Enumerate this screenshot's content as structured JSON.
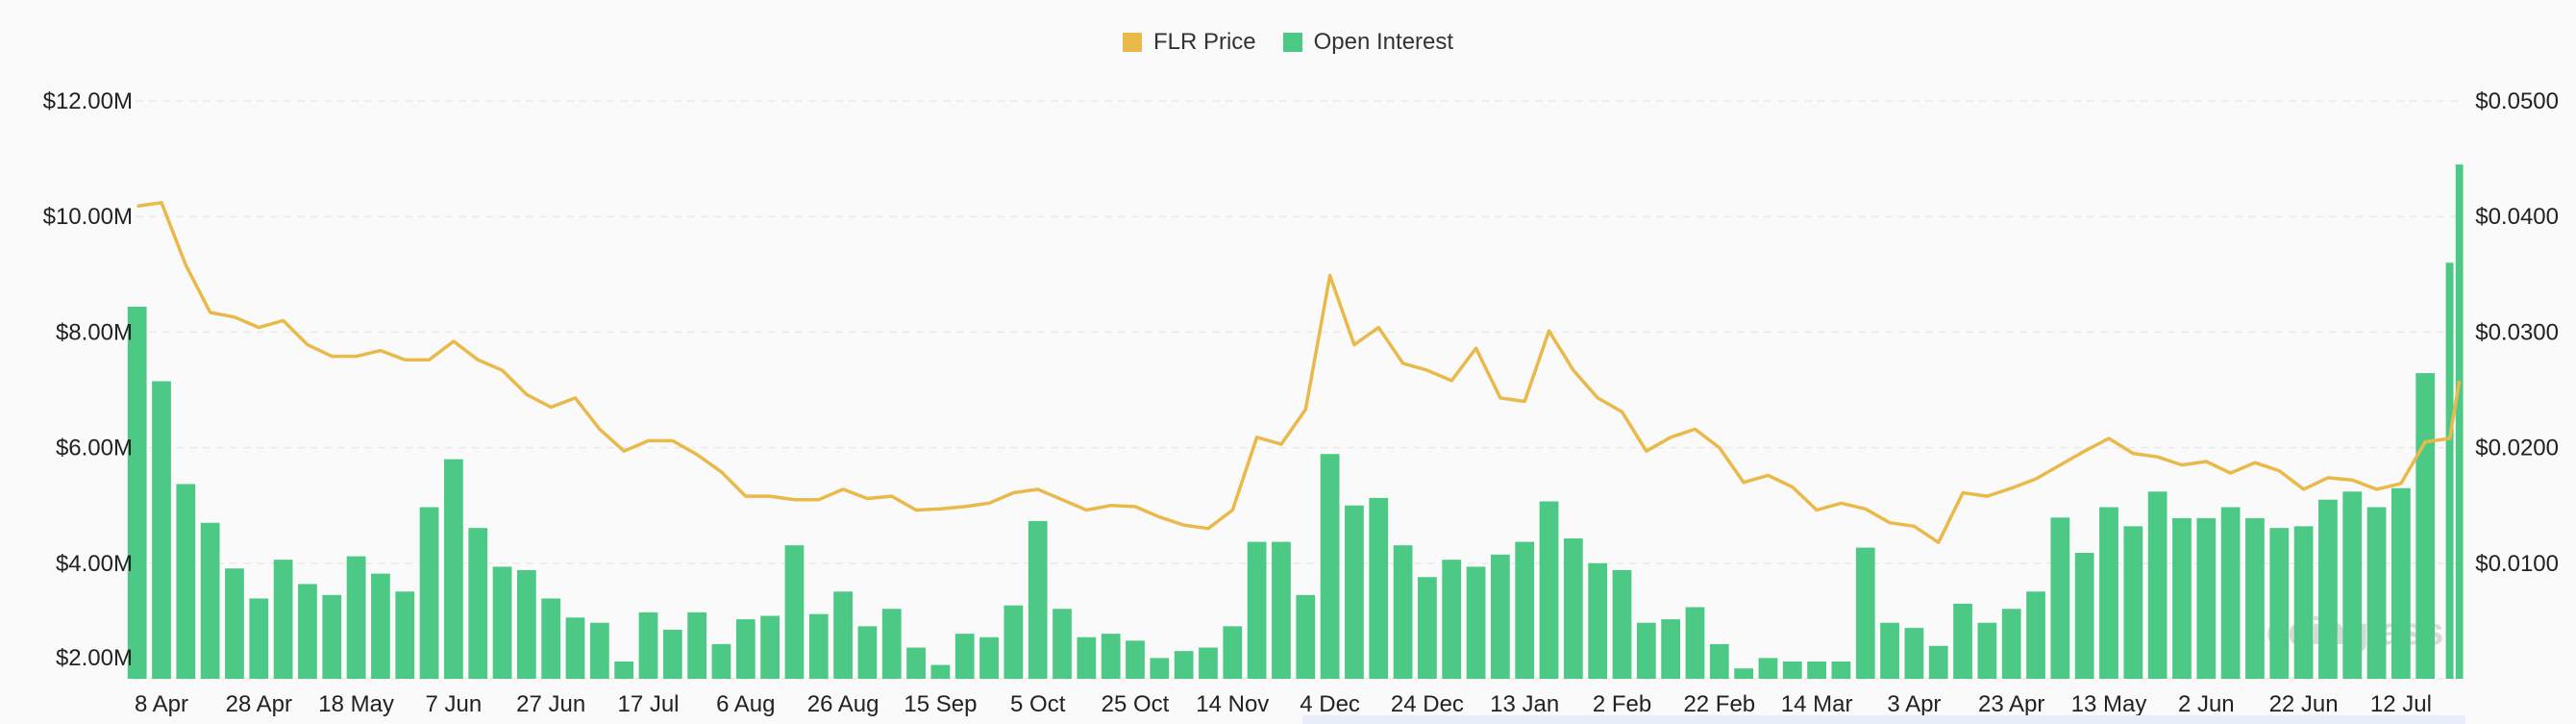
{
  "legend": [
    {
      "label": "FLR Price",
      "color": "#E9B949"
    },
    {
      "label": "Open Interest",
      "color": "#4CC984"
    }
  ],
  "watermark": "coinglass",
  "chart_data": {
    "type": "bar+line",
    "grid": true,
    "legend_position": "top-center",
    "y_left": {
      "ticks": [
        "$2.00M",
        "$4.00M",
        "$6.00M",
        "$8.00M",
        "$10.00M",
        "$12.00M"
      ],
      "tick_values": [
        2,
        4,
        6,
        8,
        10,
        12
      ],
      "range": [
        2,
        12
      ],
      "unit": "USD millions"
    },
    "y_right": {
      "ticks": [
        "$0.0100",
        "$0.0200",
        "$0.0300",
        "$0.0400",
        "$0.0500"
      ],
      "tick_values": [
        0.01,
        0.02,
        0.03,
        0.04,
        0.05
      ],
      "range": [
        0,
        0.05
      ],
      "unit": "USD"
    },
    "x_ticks": [
      {
        "label": "8 Apr",
        "date": "2024-04-08"
      },
      {
        "label": "28 Apr",
        "date": "2024-04-28"
      },
      {
        "label": "18 May",
        "date": "2024-05-18"
      },
      {
        "label": "7 Jun",
        "date": "2024-06-07"
      },
      {
        "label": "27 Jun",
        "date": "2024-06-27"
      },
      {
        "label": "17 Jul",
        "date": "2024-07-17"
      },
      {
        "label": "6 Aug",
        "date": "2024-08-06"
      },
      {
        "label": "26 Aug",
        "date": "2024-08-26"
      },
      {
        "label": "15 Sep",
        "date": "2024-09-15"
      },
      {
        "label": "5 Oct",
        "date": "2024-10-05"
      },
      {
        "label": "25 Oct",
        "date": "2024-10-25"
      },
      {
        "label": "14 Nov",
        "date": "2024-11-14"
      },
      {
        "label": "4 Dec",
        "date": "2024-12-04"
      },
      {
        "label": "24 Dec",
        "date": "2024-12-24"
      },
      {
        "label": "13 Jan",
        "date": "2025-01-13"
      },
      {
        "label": "2 Feb",
        "date": "2025-02-02"
      },
      {
        "label": "22 Feb",
        "date": "2025-02-22"
      },
      {
        "label": "14 Mar",
        "date": "2025-03-14"
      },
      {
        "label": "3 Apr",
        "date": "2025-04-03"
      },
      {
        "label": "23 Apr",
        "date": "2025-04-23"
      },
      {
        "label": "13 May",
        "date": "2025-05-13"
      },
      {
        "label": "2 Jun",
        "date": "2025-06-02"
      },
      {
        "label": "22 Jun",
        "date": "2025-06-22"
      },
      {
        "label": "12 Jul",
        "date": "2025-07-12"
      }
    ],
    "x": [
      "2024-04-03",
      "2024-04-08",
      "2024-04-13",
      "2024-04-18",
      "2024-04-23",
      "2024-04-28",
      "2024-05-03",
      "2024-05-08",
      "2024-05-13",
      "2024-05-18",
      "2024-05-23",
      "2024-05-28",
      "2024-06-02",
      "2024-06-07",
      "2024-06-12",
      "2024-06-17",
      "2024-06-22",
      "2024-06-27",
      "2024-07-02",
      "2024-07-07",
      "2024-07-12",
      "2024-07-17",
      "2024-07-22",
      "2024-07-27",
      "2024-08-01",
      "2024-08-06",
      "2024-08-11",
      "2024-08-16",
      "2024-08-21",
      "2024-08-26",
      "2024-08-31",
      "2024-09-05",
      "2024-09-10",
      "2024-09-15",
      "2024-09-20",
      "2024-09-25",
      "2024-09-30",
      "2024-10-05",
      "2024-10-10",
      "2024-10-15",
      "2024-10-20",
      "2024-10-25",
      "2024-10-30",
      "2024-11-04",
      "2024-11-09",
      "2024-11-14",
      "2024-11-19",
      "2024-11-24",
      "2024-11-29",
      "2024-12-04",
      "2024-12-09",
      "2024-12-14",
      "2024-12-19",
      "2024-12-24",
      "2024-12-29",
      "2025-01-03",
      "2025-01-08",
      "2025-01-13",
      "2025-01-18",
      "2025-01-23",
      "2025-01-28",
      "2025-02-02",
      "2025-02-07",
      "2025-02-12",
      "2025-02-17",
      "2025-02-22",
      "2025-02-27",
      "2025-03-04",
      "2025-03-09",
      "2025-03-14",
      "2025-03-19",
      "2025-03-24",
      "2025-03-29",
      "2025-04-03",
      "2025-04-08",
      "2025-04-13",
      "2025-04-18",
      "2025-04-23",
      "2025-04-28",
      "2025-05-03",
      "2025-05-08",
      "2025-05-13",
      "2025-05-18",
      "2025-05-23",
      "2025-05-28",
      "2025-06-02",
      "2025-06-07",
      "2025-06-12",
      "2025-06-17",
      "2025-06-22",
      "2025-06-27",
      "2025-07-02",
      "2025-07-07",
      "2025-07-12",
      "2025-07-17",
      "2025-07-22",
      "2025-07-24"
    ],
    "series": [
      {
        "name": "Open Interest",
        "type": "bar",
        "axis": "left",
        "color": "#4CC984",
        "values": [
          8.44,
          7.15,
          5.37,
          4.7,
          3.91,
          3.39,
          4.06,
          3.64,
          3.45,
          4.12,
          3.82,
          3.51,
          4.97,
          5.8,
          4.61,
          3.94,
          3.88,
          3.39,
          3.06,
          2.97,
          2.3,
          3.15,
          2.85,
          3.15,
          2.6,
          3.03,
          3.09,
          4.31,
          3.12,
          3.51,
          2.91,
          3.21,
          2.54,
          2.24,
          2.78,
          2.72,
          3.27,
          4.73,
          3.21,
          2.72,
          2.78,
          2.66,
          2.36,
          2.48,
          2.54,
          2.91,
          4.37,
          4.37,
          3.45,
          5.89,
          5.0,
          5.13,
          4.31,
          3.76,
          4.06,
          3.94,
          4.15,
          4.37,
          5.07,
          4.43,
          4.0,
          3.88,
          2.97,
          3.03,
          3.24,
          2.6,
          2.18,
          2.36,
          2.3,
          2.3,
          2.3,
          4.27,
          2.97,
          2.88,
          2.57,
          3.3,
          2.97,
          3.21,
          3.51,
          4.79,
          4.18,
          4.97,
          4.64,
          5.24,
          4.78,
          4.78,
          4.97,
          4.78,
          4.61,
          4.64,
          5.1,
          5.24,
          4.97,
          5.3,
          7.29,
          9.2,
          10.9
        ]
      },
      {
        "name": "FLR Price",
        "type": "line",
        "axis": "right",
        "color": "#E9B949",
        "values": [
          0.0409,
          0.0412,
          0.0358,
          0.0317,
          0.0313,
          0.0304,
          0.031,
          0.0289,
          0.0279,
          0.0279,
          0.0284,
          0.0276,
          0.0276,
          0.0292,
          0.0276,
          0.0267,
          0.0246,
          0.0235,
          0.0243,
          0.0216,
          0.0197,
          0.0206,
          0.0206,
          0.0194,
          0.0179,
          0.0158,
          0.0158,
          0.0155,
          0.0155,
          0.0164,
          0.0156,
          0.0158,
          0.0146,
          0.0147,
          0.0149,
          0.0152,
          0.0161,
          0.0164,
          0.0155,
          0.0146,
          0.015,
          0.0149,
          0.014,
          0.0133,
          0.013,
          0.0146,
          0.0209,
          0.0203,
          0.0233,
          0.0349,
          0.0289,
          0.0304,
          0.0273,
          0.0267,
          0.0258,
          0.0286,
          0.0243,
          0.024,
          0.0301,
          0.0267,
          0.0243,
          0.0231,
          0.0197,
          0.0209,
          0.0216,
          0.02,
          0.017,
          0.0176,
          0.0166,
          0.0146,
          0.0152,
          0.0147,
          0.0135,
          0.0132,
          0.0118,
          0.0161,
          0.0158,
          0.0165,
          0.0173,
          0.0185,
          0.0197,
          0.0208,
          0.0195,
          0.0192,
          0.0185,
          0.0188,
          0.0178,
          0.0187,
          0.018,
          0.0164,
          0.0174,
          0.0172,
          0.0164,
          0.0169,
          0.0205,
          0.0208,
          0.0258
        ]
      }
    ]
  }
}
